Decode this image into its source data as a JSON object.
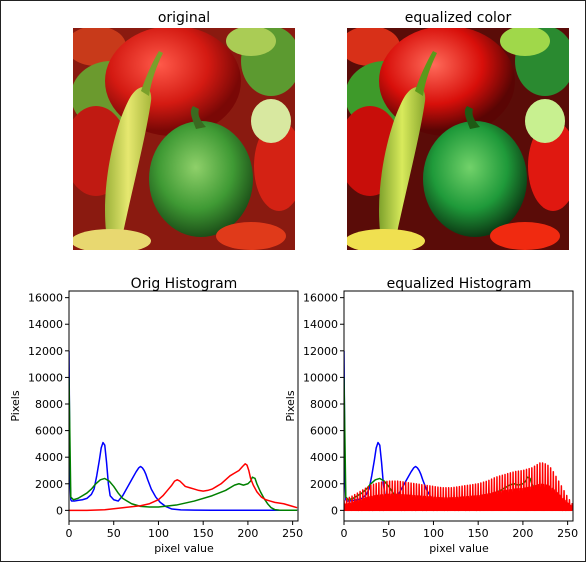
{
  "images": [
    {
      "title": "original",
      "icon": "peppers-photo-original"
    },
    {
      "title": "equalized color",
      "icon": "peppers-photo-equalized"
    }
  ],
  "colors": {
    "blue": "#0000ff",
    "green": "#008000",
    "red": "#ff0000",
    "axis": "#000000"
  },
  "chart_data": [
    {
      "type": "line",
      "title": "Orig Histogram",
      "xlabel": "pixel value",
      "ylabel": "Pixels",
      "xlim": [
        0,
        256
      ],
      "ylim": [
        -800,
        16500
      ],
      "xticks": [
        0,
        50,
        100,
        150,
        200,
        250
      ],
      "yticks": [
        0,
        2000,
        4000,
        6000,
        8000,
        10000,
        12000,
        14000,
        16000
      ],
      "series": [
        {
          "color": "#0000ff",
          "x": [
            0,
            1,
            2,
            3,
            6,
            10,
            15,
            20,
            25,
            28,
            31,
            34,
            36,
            38,
            40,
            42,
            44,
            46,
            50,
            55,
            60,
            65,
            70,
            75,
            78,
            80,
            82,
            84,
            86,
            88,
            92,
            97,
            102,
            108,
            115,
            125,
            140,
            160,
            180,
            200,
            210,
            220,
            230,
            240,
            250,
            255
          ],
          "y": [
            12000,
            2500,
            800,
            700,
            700,
            750,
            800,
            900,
            1200,
            1600,
            2600,
            3800,
            4700,
            5100,
            4900,
            3600,
            2000,
            1100,
            800,
            700,
            1100,
            1700,
            2300,
            2900,
            3200,
            3300,
            3200,
            3000,
            2700,
            2300,
            1600,
            1000,
            600,
            300,
            100,
            40,
            20,
            10,
            5,
            5,
            5,
            5,
            5,
            5,
            5,
            5
          ]
        },
        {
          "color": "#008000",
          "x": [
            0,
            2,
            5,
            10,
            15,
            20,
            25,
            30,
            35,
            40,
            45,
            50,
            55,
            60,
            70,
            80,
            90,
            100,
            120,
            140,
            160,
            175,
            185,
            190,
            195,
            200,
            203,
            205,
            208,
            210,
            214,
            218,
            222,
            226,
            230,
            235,
            240,
            250,
            255
          ],
          "y": [
            10000,
            1000,
            800,
            900,
            1100,
            1300,
            1600,
            2000,
            2300,
            2400,
            2200,
            1800,
            1300,
            900,
            500,
            300,
            250,
            250,
            400,
            700,
            1100,
            1500,
            1900,
            2000,
            1900,
            2000,
            2200,
            2500,
            2400,
            2000,
            1400,
            900,
            500,
            200,
            60,
            20,
            10,
            5,
            5
          ]
        },
        {
          "color": "#ff0000",
          "x": [
            0,
            20,
            40,
            60,
            80,
            90,
            100,
            105,
            110,
            115,
            118,
            121,
            124,
            127,
            130,
            135,
            140,
            145,
            150,
            155,
            160,
            165,
            170,
            175,
            180,
            185,
            190,
            194,
            197,
            199,
            201,
            203,
            206,
            210,
            215,
            220,
            225,
            230,
            240,
            250,
            255
          ],
          "y": [
            0,
            0,
            50,
            200,
            350,
            500,
            800,
            1100,
            1500,
            1900,
            2200,
            2300,
            2200,
            2000,
            1800,
            1700,
            1600,
            1500,
            1450,
            1500,
            1600,
            1800,
            2000,
            2300,
            2600,
            2800,
            3000,
            3300,
            3500,
            3400,
            3000,
            2400,
            1900,
            1400,
            1000,
            800,
            700,
            600,
            500,
            300,
            200
          ]
        }
      ]
    },
    {
      "type": "line",
      "title": "equalized Histogram",
      "xlabel": "pixel value",
      "ylabel": "Pixels",
      "xlim": [
        0,
        256
      ],
      "ylim": [
        -800,
        16500
      ],
      "xticks": [
        0,
        50,
        100,
        150,
        200,
        250
      ],
      "yticks": [
        0,
        2000,
        4000,
        6000,
        8000,
        10000,
        12000,
        14000,
        16000
      ],
      "series": [
        {
          "color": "#0000ff",
          "x": [
            0,
            1,
            2,
            3,
            6,
            10,
            15,
            20,
            25,
            28,
            31,
            34,
            36,
            38,
            40,
            42,
            44,
            46,
            50,
            55,
            60,
            65,
            70,
            75,
            78,
            80,
            82,
            84,
            86,
            88,
            92,
            97,
            102,
            108,
            115,
            125,
            140,
            160,
            180,
            200,
            210,
            220,
            230,
            240,
            250,
            255
          ],
          "y": [
            12000,
            2500,
            800,
            700,
            700,
            750,
            800,
            900,
            1200,
            1600,
            2600,
            3800,
            4700,
            5100,
            4900,
            3600,
            2000,
            1100,
            800,
            700,
            1100,
            1700,
            2300,
            2900,
            3200,
            3300,
            3200,
            3000,
            2700,
            2300,
            1600,
            1000,
            600,
            300,
            100,
            40,
            20,
            10,
            5,
            5,
            5,
            5,
            5,
            5,
            5,
            5
          ]
        },
        {
          "color": "#008000",
          "x": [
            0,
            2,
            5,
            10,
            15,
            20,
            25,
            30,
            35,
            40,
            45,
            50,
            55,
            60,
            70,
            80,
            90,
            100,
            120,
            140,
            160,
            175,
            185,
            190,
            195,
            200,
            203,
            205,
            208,
            210,
            214,
            218,
            222,
            226,
            230,
            235,
            240,
            250,
            255
          ],
          "y": [
            10000,
            1000,
            800,
            900,
            1100,
            1300,
            1600,
            2000,
            2300,
            2400,
            2200,
            1800,
            1300,
            900,
            500,
            300,
            250,
            250,
            400,
            700,
            1100,
            1500,
            1900,
            2000,
            1900,
            2000,
            2200,
            2500,
            2400,
            2000,
            1400,
            900,
            500,
            200,
            60,
            20,
            10,
            5,
            5
          ]
        },
        {
          "color": "#ff0000",
          "style": "spiky",
          "x": [
            0,
            10,
            20,
            25,
            30,
            35,
            40,
            50,
            60,
            70,
            80,
            90,
            100,
            110,
            120,
            130,
            140,
            150,
            160,
            170,
            180,
            190,
            200,
            210,
            215,
            220,
            225,
            230,
            235,
            240,
            245,
            250,
            255
          ],
          "y": [
            800,
            1100,
            1500,
            1700,
            1900,
            2000,
            2100,
            2200,
            2200,
            2100,
            2000,
            1900,
            1800,
            1700,
            1700,
            1800,
            1900,
            2000,
            2200,
            2500,
            2700,
            2900,
            3000,
            3200,
            3400,
            3600,
            3500,
            3300,
            2800,
            2200,
            1600,
            1000,
            500
          ]
        }
      ]
    }
  ]
}
